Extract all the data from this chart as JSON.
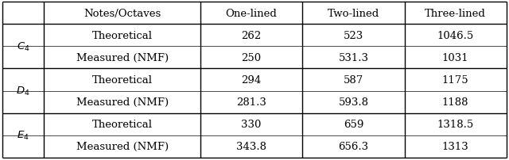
{
  "col_headers": [
    "Notes/Octaves",
    "One-lined",
    "Two-lined",
    "Three-lined"
  ],
  "row_labels": [
    "$C_4$",
    "$D_4$",
    "$E_4$"
  ],
  "row_sublabels": [
    "Theoretical",
    "Measured (NMF)"
  ],
  "data": [
    [
      [
        "262",
        "523",
        "1046.5"
      ],
      [
        "250",
        "531.3",
        "1031"
      ]
    ],
    [
      [
        "294",
        "587",
        "1175"
      ],
      [
        "281.3",
        "593.8",
        "1188"
      ]
    ],
    [
      [
        "330",
        "659",
        "1318.5"
      ],
      [
        "343.8",
        "656.3",
        "1313"
      ]
    ]
  ],
  "figsize": [
    6.4,
    2.03
  ],
  "dpi": 100,
  "bg_color": "#ffffff",
  "line_color": "#000000",
  "font_size": 9.5,
  "header_font_size": 9.5
}
